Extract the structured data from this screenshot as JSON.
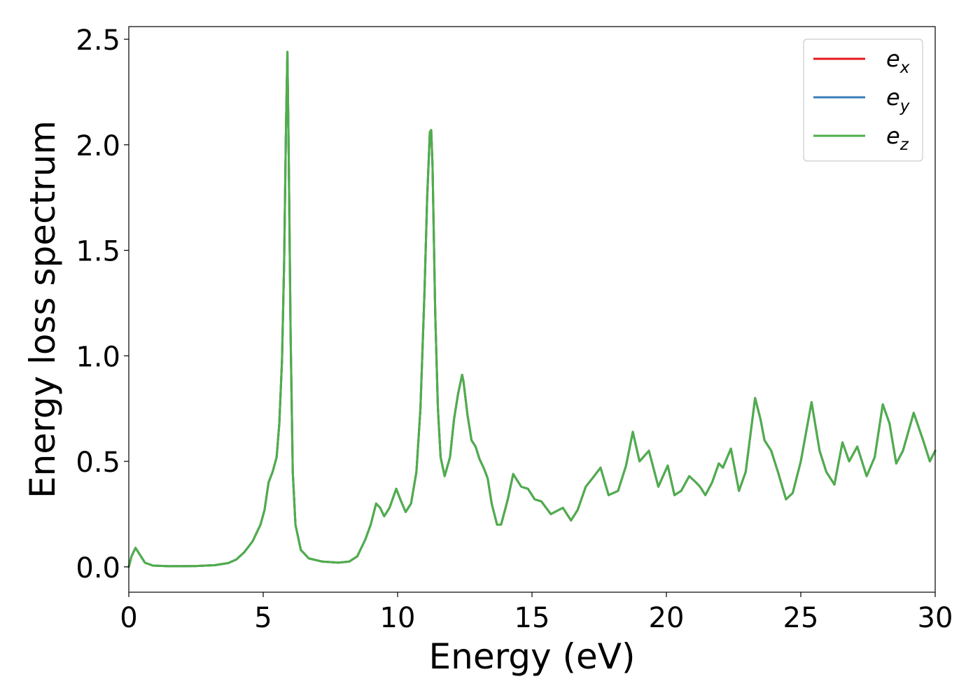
{
  "chart_data": {
    "type": "line",
    "title": "",
    "xlabel": "Energy (eV)",
    "ylabel": "Energy loss spectrum",
    "xlim": [
      0,
      30
    ],
    "ylim": [
      -0.12,
      2.56
    ],
    "xticks": [
      0,
      5,
      10,
      15,
      20,
      25,
      30
    ],
    "xtick_labels": [
      "0",
      "5",
      "10",
      "15",
      "20",
      "25",
      "30"
    ],
    "yticks": [
      0.0,
      0.5,
      1.0,
      1.5,
      2.0,
      2.5
    ],
    "ytick_labels": [
      "0.0",
      "0.5",
      "1.0",
      "1.5",
      "2.0",
      "2.5"
    ],
    "grid": false,
    "legend_position": "top-right",
    "legend": [
      {
        "base": "e",
        "sub": "x",
        "color": "#e41a1c"
      },
      {
        "base": "e",
        "sub": "y",
        "color": "#377eb8"
      },
      {
        "base": "e",
        "sub": "z",
        "color": "#4daf4a"
      }
    ],
    "series": [
      {
        "name": "e_x",
        "color": "#e41a1c",
        "x": [
          0,
          0.1,
          0.25,
          0.4,
          0.6,
          0.9,
          1.5,
          2.5,
          3.2,
          3.7,
          4.0,
          4.3,
          4.6,
          4.9,
          5.05,
          5.2,
          5.35,
          5.5,
          5.6,
          5.7,
          5.78,
          5.85,
          5.9,
          5.95,
          6.02,
          6.1,
          6.2,
          6.4,
          6.7,
          7.2,
          7.8,
          8.2,
          8.5,
          8.8,
          9.0,
          9.2,
          9.35,
          9.5,
          9.7,
          9.95,
          10.1,
          10.3,
          10.5,
          10.7,
          10.85,
          11.0,
          11.1,
          11.2,
          11.25,
          11.3,
          11.4,
          11.5,
          11.6,
          11.75,
          11.95,
          12.1,
          12.25,
          12.4,
          12.45,
          12.6,
          12.75,
          12.9,
          13.05,
          13.2,
          13.35,
          13.5,
          13.7,
          13.85,
          14.1,
          14.3,
          14.6,
          14.85,
          15.1,
          15.35,
          15.7,
          16.15,
          16.45,
          16.7,
          17.0,
          17.25,
          17.55,
          17.85,
          18.2,
          18.5,
          18.75,
          19.0,
          19.35,
          19.7,
          20.05,
          20.3,
          20.55,
          20.85,
          21.1,
          21.25,
          21.45,
          21.7,
          21.95,
          22.1,
          22.4,
          22.7,
          22.95,
          23.3,
          23.5,
          23.65,
          23.9,
          24.15,
          24.45,
          24.7,
          25.0,
          25.4,
          25.7,
          25.95,
          26.25,
          26.55,
          26.8,
          27.1,
          27.45,
          27.75,
          28.05,
          28.3,
          28.55,
          28.8,
          29.2,
          29.55,
          29.8,
          30.0
        ],
        "y": [
          0.0,
          0.05,
          0.09,
          0.06,
          0.02,
          0.006,
          0.003,
          0.004,
          0.008,
          0.018,
          0.035,
          0.07,
          0.12,
          0.2,
          0.27,
          0.4,
          0.45,
          0.52,
          0.68,
          0.98,
          1.45,
          2.1,
          2.44,
          1.95,
          1.1,
          0.45,
          0.2,
          0.08,
          0.04,
          0.025,
          0.02,
          0.025,
          0.05,
          0.13,
          0.2,
          0.3,
          0.28,
          0.24,
          0.28,
          0.37,
          0.32,
          0.26,
          0.3,
          0.45,
          0.75,
          1.3,
          1.75,
          2.06,
          2.07,
          1.9,
          1.2,
          0.75,
          0.52,
          0.43,
          0.52,
          0.7,
          0.82,
          0.91,
          0.88,
          0.72,
          0.6,
          0.57,
          0.51,
          0.47,
          0.42,
          0.3,
          0.2,
          0.2,
          0.32,
          0.44,
          0.38,
          0.37,
          0.32,
          0.31,
          0.25,
          0.28,
          0.22,
          0.27,
          0.38,
          0.42,
          0.47,
          0.34,
          0.36,
          0.48,
          0.64,
          0.5,
          0.55,
          0.38,
          0.48,
          0.34,
          0.36,
          0.43,
          0.4,
          0.38,
          0.34,
          0.4,
          0.49,
          0.47,
          0.56,
          0.36,
          0.45,
          0.8,
          0.7,
          0.6,
          0.55,
          0.45,
          0.32,
          0.35,
          0.5,
          0.78,
          0.55,
          0.45,
          0.39,
          0.59,
          0.5,
          0.57,
          0.43,
          0.52,
          0.77,
          0.68,
          0.49,
          0.55,
          0.73,
          0.6,
          0.5,
          0.55
        ]
      },
      {
        "name": "e_y",
        "color": "#377eb8",
        "x": [
          0,
          0.1,
          0.25,
          0.4,
          0.6,
          0.9,
          1.5,
          2.5,
          3.2,
          3.7,
          4.0,
          4.3,
          4.6,
          4.9,
          5.05,
          5.2,
          5.35,
          5.5,
          5.6,
          5.7,
          5.78,
          5.85,
          5.9,
          5.95,
          6.02,
          6.1,
          6.2,
          6.4,
          6.7,
          7.2,
          7.8,
          8.2,
          8.5,
          8.8,
          9.0,
          9.2,
          9.35,
          9.5,
          9.7,
          9.95,
          10.1,
          10.3,
          10.5,
          10.7,
          10.85,
          11.0,
          11.1,
          11.2,
          11.25,
          11.3,
          11.4,
          11.5,
          11.6,
          11.75,
          11.95,
          12.1,
          12.25,
          12.4,
          12.45,
          12.6,
          12.75,
          12.9,
          13.05,
          13.2,
          13.35,
          13.5,
          13.7,
          13.85,
          14.1,
          14.3,
          14.6,
          14.85,
          15.1,
          15.35,
          15.7,
          16.15,
          16.45,
          16.7,
          17.0,
          17.25,
          17.55,
          17.85,
          18.2,
          18.5,
          18.75,
          19.0,
          19.35,
          19.7,
          20.05,
          20.3,
          20.55,
          20.85,
          21.1,
          21.25,
          21.45,
          21.7,
          21.95,
          22.1,
          22.4,
          22.7,
          22.95,
          23.3,
          23.5,
          23.65,
          23.9,
          24.15,
          24.45,
          24.7,
          25.0,
          25.4,
          25.7,
          25.95,
          26.25,
          26.55,
          26.8,
          27.1,
          27.45,
          27.75,
          28.05,
          28.3,
          28.55,
          28.8,
          29.2,
          29.55,
          29.8,
          30.0
        ],
        "y": [
          0.0,
          0.05,
          0.09,
          0.06,
          0.02,
          0.006,
          0.003,
          0.004,
          0.008,
          0.018,
          0.035,
          0.07,
          0.12,
          0.2,
          0.27,
          0.4,
          0.45,
          0.52,
          0.68,
          0.98,
          1.45,
          2.1,
          2.44,
          1.95,
          1.1,
          0.45,
          0.2,
          0.08,
          0.04,
          0.025,
          0.02,
          0.025,
          0.05,
          0.13,
          0.2,
          0.3,
          0.28,
          0.24,
          0.28,
          0.37,
          0.32,
          0.26,
          0.3,
          0.45,
          0.75,
          1.3,
          1.75,
          2.06,
          2.07,
          1.9,
          1.2,
          0.75,
          0.52,
          0.43,
          0.52,
          0.7,
          0.82,
          0.91,
          0.88,
          0.72,
          0.6,
          0.57,
          0.51,
          0.47,
          0.42,
          0.3,
          0.2,
          0.2,
          0.32,
          0.44,
          0.38,
          0.37,
          0.32,
          0.31,
          0.25,
          0.28,
          0.22,
          0.27,
          0.38,
          0.42,
          0.47,
          0.34,
          0.36,
          0.48,
          0.64,
          0.5,
          0.55,
          0.38,
          0.48,
          0.34,
          0.36,
          0.43,
          0.4,
          0.38,
          0.34,
          0.4,
          0.49,
          0.47,
          0.56,
          0.36,
          0.45,
          0.8,
          0.7,
          0.6,
          0.55,
          0.45,
          0.32,
          0.35,
          0.5,
          0.78,
          0.55,
          0.45,
          0.39,
          0.59,
          0.5,
          0.57,
          0.43,
          0.52,
          0.77,
          0.68,
          0.49,
          0.55,
          0.73,
          0.6,
          0.5,
          0.55
        ]
      },
      {
        "name": "e_z",
        "color": "#4daf4a",
        "x": [
          0,
          0.1,
          0.25,
          0.4,
          0.6,
          0.9,
          1.5,
          2.5,
          3.2,
          3.7,
          4.0,
          4.3,
          4.6,
          4.9,
          5.05,
          5.2,
          5.35,
          5.5,
          5.6,
          5.7,
          5.78,
          5.85,
          5.9,
          5.95,
          6.02,
          6.1,
          6.2,
          6.4,
          6.7,
          7.2,
          7.8,
          8.2,
          8.5,
          8.8,
          9.0,
          9.2,
          9.35,
          9.5,
          9.7,
          9.95,
          10.1,
          10.3,
          10.5,
          10.7,
          10.85,
          11.0,
          11.1,
          11.2,
          11.25,
          11.3,
          11.4,
          11.5,
          11.6,
          11.75,
          11.95,
          12.1,
          12.25,
          12.4,
          12.45,
          12.6,
          12.75,
          12.9,
          13.05,
          13.2,
          13.35,
          13.5,
          13.7,
          13.85,
          14.1,
          14.3,
          14.6,
          14.85,
          15.1,
          15.35,
          15.7,
          16.15,
          16.45,
          16.7,
          17.0,
          17.25,
          17.55,
          17.85,
          18.2,
          18.5,
          18.75,
          19.0,
          19.35,
          19.7,
          20.05,
          20.3,
          20.55,
          20.85,
          21.1,
          21.25,
          21.45,
          21.7,
          21.95,
          22.1,
          22.4,
          22.7,
          22.95,
          23.3,
          23.5,
          23.65,
          23.9,
          24.15,
          24.45,
          24.7,
          25.0,
          25.4,
          25.7,
          25.95,
          26.25,
          26.55,
          26.8,
          27.1,
          27.45,
          27.75,
          28.05,
          28.3,
          28.55,
          28.8,
          29.2,
          29.55,
          29.8,
          30.0
        ],
        "y": [
          0.0,
          0.05,
          0.09,
          0.06,
          0.02,
          0.006,
          0.003,
          0.004,
          0.008,
          0.018,
          0.035,
          0.07,
          0.12,
          0.2,
          0.27,
          0.4,
          0.45,
          0.52,
          0.68,
          0.98,
          1.45,
          2.1,
          2.44,
          1.95,
          1.1,
          0.45,
          0.2,
          0.08,
          0.04,
          0.025,
          0.02,
          0.025,
          0.05,
          0.13,
          0.2,
          0.3,
          0.28,
          0.24,
          0.28,
          0.37,
          0.32,
          0.26,
          0.3,
          0.45,
          0.75,
          1.3,
          1.75,
          2.06,
          2.07,
          1.9,
          1.2,
          0.75,
          0.52,
          0.43,
          0.52,
          0.7,
          0.82,
          0.91,
          0.88,
          0.72,
          0.6,
          0.57,
          0.51,
          0.47,
          0.42,
          0.3,
          0.2,
          0.2,
          0.32,
          0.44,
          0.38,
          0.37,
          0.32,
          0.31,
          0.25,
          0.28,
          0.22,
          0.27,
          0.38,
          0.42,
          0.47,
          0.34,
          0.36,
          0.48,
          0.64,
          0.5,
          0.55,
          0.38,
          0.48,
          0.34,
          0.36,
          0.43,
          0.4,
          0.38,
          0.34,
          0.4,
          0.49,
          0.47,
          0.56,
          0.36,
          0.45,
          0.8,
          0.7,
          0.6,
          0.55,
          0.45,
          0.32,
          0.35,
          0.5,
          0.78,
          0.55,
          0.45,
          0.39,
          0.59,
          0.5,
          0.57,
          0.43,
          0.52,
          0.77,
          0.68,
          0.49,
          0.55,
          0.73,
          0.6,
          0.5,
          0.55
        ]
      }
    ]
  }
}
